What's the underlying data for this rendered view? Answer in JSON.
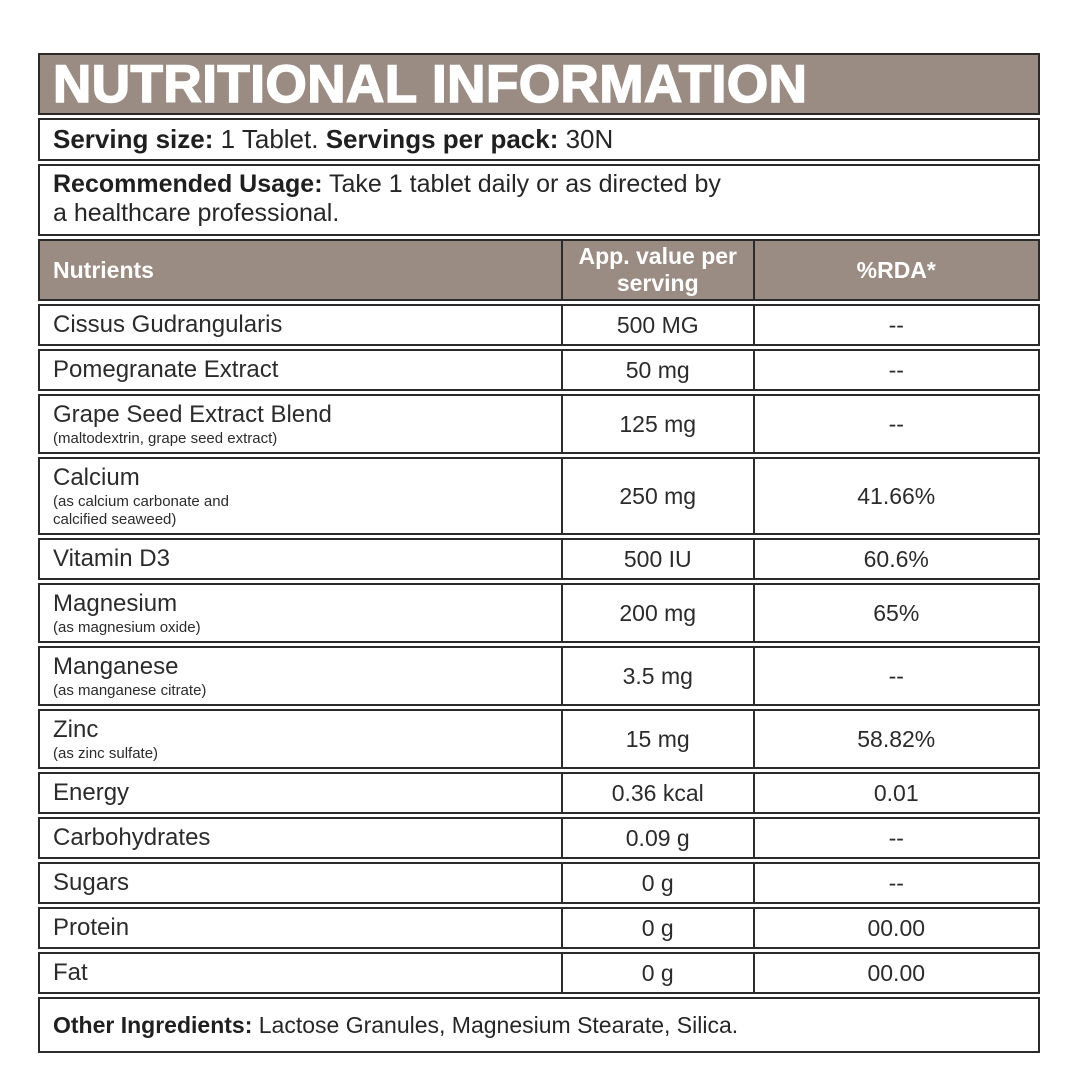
{
  "title": "NUTRITIONAL INFORMATION",
  "serving": {
    "size_label": "Serving size:",
    "size_value": "1 Tablet.",
    "pack_label": "Servings per pack:",
    "pack_value": "30N"
  },
  "usage": {
    "label": "Recommended Usage:",
    "text": "Take 1 tablet daily or as directed by\na healthcare professional."
  },
  "table": {
    "headers": [
      "Nutrients",
      "App. value per serving",
      "%RDA*"
    ],
    "rows": [
      {
        "name": "Cissus Gudrangularis",
        "sub": "",
        "value": "500 MG",
        "rda": "--"
      },
      {
        "name": "Pomegranate Extract",
        "sub": "",
        "value": "50 mg",
        "rda": "--"
      },
      {
        "name": "Grape Seed Extract Blend",
        "sub": "(maltodextrin, grape seed extract)",
        "value": "125 mg",
        "rda": "--"
      },
      {
        "name": "Calcium",
        "sub": "(as calcium carbonate and\ncalcified seaweed)",
        "value": "250 mg",
        "rda": "41.66%"
      },
      {
        "name": "Vitamin D3",
        "sub": "",
        "value": "500 IU",
        "rda": "60.6%"
      },
      {
        "name": "Magnesium",
        "sub": "(as magnesium oxide)",
        "value": "200 mg",
        "rda": "65%"
      },
      {
        "name": "Manganese",
        "sub": "(as manganese citrate)",
        "value": "3.5 mg",
        "rda": "--"
      },
      {
        "name": "Zinc",
        "sub": "(as zinc sulfate)",
        "value": "15 mg",
        "rda": "58.82%"
      },
      {
        "name": "Energy",
        "sub": "",
        "value": "0.36 kcal",
        "rda": "0.01"
      },
      {
        "name": "Carbohydrates",
        "sub": "",
        "value": "0.09 g",
        "rda": "--"
      },
      {
        "name": "Sugars",
        "sub": "",
        "value": "0 g",
        "rda": "--"
      },
      {
        "name": "Protein",
        "sub": "",
        "value": "0 g",
        "rda": "00.00"
      },
      {
        "name": "Fat",
        "sub": "",
        "value": "0 g",
        "rda": "00.00"
      }
    ]
  },
  "footer": {
    "label": "Other Ingredients:",
    "text": "Lactose Granules, Magnesium Stearate, Silica."
  },
  "colors": {
    "band": "#9a8c83",
    "border": "#2b2b2b",
    "text": "#262626"
  }
}
